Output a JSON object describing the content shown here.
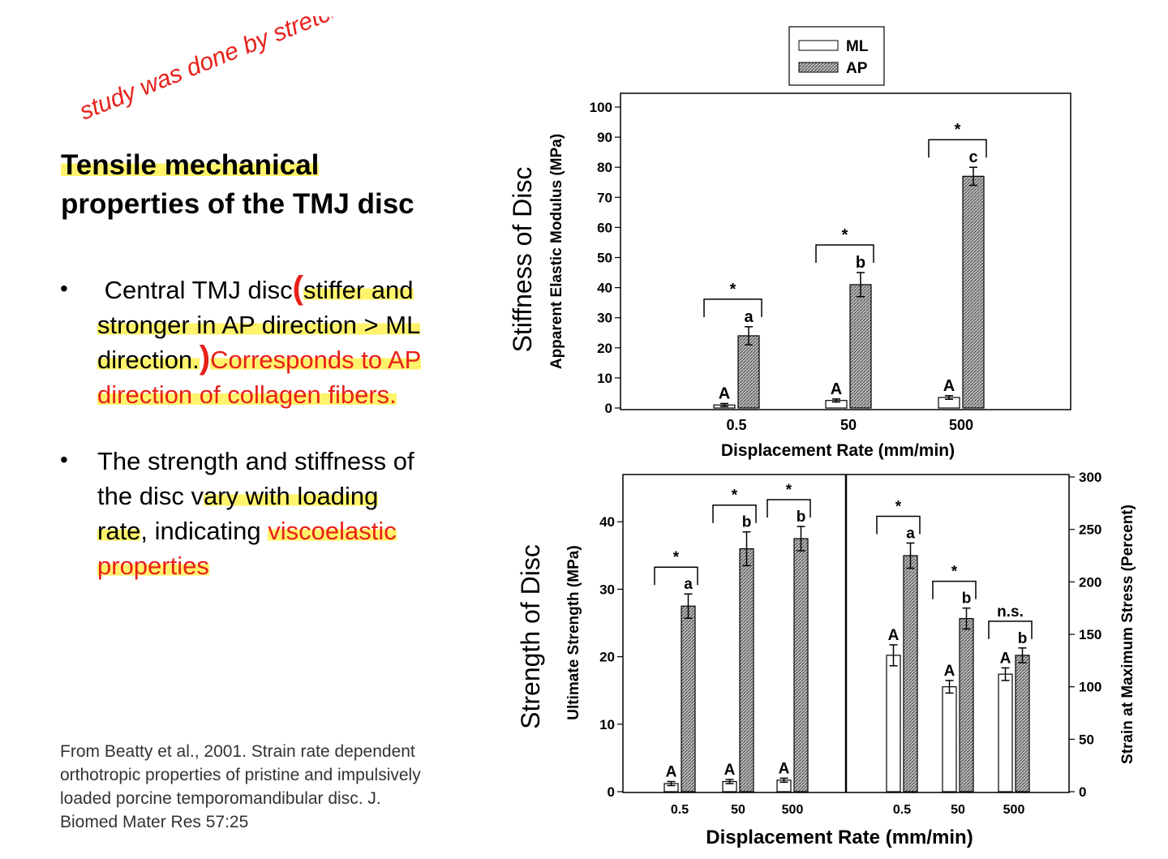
{
  "annotation": {
    "handwritten_note": "study was done by stretching the IZ"
  },
  "slide": {
    "title_line1": "Tensile mechanical",
    "title_line2": "properties of the TMJ disc",
    "bullet1": {
      "seg1": "Central TMJ disc",
      "seg2": "stiffer and",
      "line2": "stronger in AP direction > ML",
      "line3a": "direction.",
      "line3b": "Corresponds to AP",
      "line4": "direction of collagen fibers."
    },
    "bullet2": {
      "line1": "The strength and stiffness of",
      "line2a": "the disc v",
      "line2b": "ary with loading",
      "line3a": "rate",
      "line3b": ", indicating ",
      "line3c": "viscoelastic",
      "line4": "properties"
    },
    "citation": [
      "From Beatty et al., 2001. Strain rate dependent",
      "orthotropic properties of pristine and impulsively",
      "loaded porcine temporomandibular disc. J.",
      "Biomed Mater Res 57:25"
    ],
    "colors": {
      "annotation_red": "#e8201a",
      "highlight_yellow": "#fff36b"
    }
  },
  "chart_data": [
    {
      "type": "bar",
      "side_title": "Stiffness of Disc",
      "ylabel": "Apparent Elastic Modulus (MPa)",
      "xlabel": "Displacement Rate (mm/min)",
      "categories": [
        "0.5",
        "50",
        "500"
      ],
      "ylim": [
        0,
        100
      ],
      "yticks": [
        0,
        10,
        20,
        30,
        40,
        50,
        60,
        70,
        80,
        90,
        100
      ],
      "legend": {
        "placement": "top-center",
        "entries": [
          "ML",
          "AP"
        ]
      },
      "series": [
        {
          "name": "ML",
          "values": [
            1,
            2.5,
            3.5
          ],
          "errors": [
            0.5,
            0.5,
            0.6
          ],
          "letters": [
            "A",
            "A",
            "A"
          ]
        },
        {
          "name": "AP",
          "values": [
            24,
            41,
            77
          ],
          "errors": [
            3,
            4,
            3
          ],
          "letters": [
            "a",
            "b",
            "c"
          ]
        }
      ],
      "significance": [
        "*",
        "*",
        "*"
      ]
    },
    {
      "type": "bar",
      "side_title": "Strength of Disc",
      "ylabel": "Ultimate Strength (MPa)",
      "xlabel": "Displacement Rate (mm/min)",
      "categories": [
        "0.5",
        "50",
        "500"
      ],
      "ylim": [
        0,
        47
      ],
      "yticks": [
        0,
        10,
        20,
        30,
        40
      ],
      "series": [
        {
          "name": "ML",
          "values": [
            1.2,
            1.5,
            1.7
          ],
          "errors": [
            0.3,
            0.3,
            0.3
          ],
          "letters": [
            "A",
            "A",
            "A"
          ]
        },
        {
          "name": "AP",
          "values": [
            27.5,
            36,
            37.5
          ],
          "errors": [
            1.8,
            2.5,
            1.8
          ],
          "letters": [
            "a",
            "b",
            "b"
          ]
        }
      ],
      "significance": [
        "*",
        "*",
        "*"
      ]
    },
    {
      "type": "bar",
      "ylabel": "Strain at Maximum Stress (Percent)",
      "categories": [
        "0.5",
        "50",
        "500"
      ],
      "ylim": [
        0,
        300
      ],
      "yticks": [
        0,
        50,
        100,
        150,
        200,
        250,
        300
      ],
      "series": [
        {
          "name": "ML",
          "values": [
            130,
            100,
            112
          ],
          "errors": [
            10,
            6,
            6
          ],
          "letters": [
            "A",
            "A",
            "A"
          ]
        },
        {
          "name": "AP",
          "values": [
            225,
            165,
            130
          ],
          "errors": [
            12,
            10,
            7
          ],
          "letters": [
            "a",
            "b",
            "b"
          ]
        }
      ],
      "significance": [
        "*",
        "*",
        "n.s."
      ]
    }
  ]
}
